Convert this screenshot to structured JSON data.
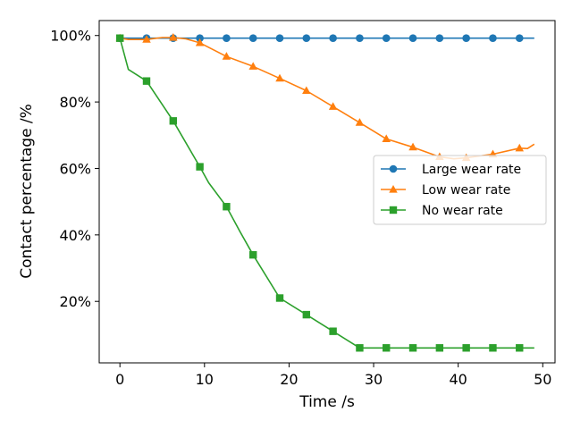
{
  "chart_data": {
    "type": "line",
    "title": "",
    "xlabel": "Time /s",
    "ylabel": "Contact percentage /%",
    "xlim": [
      -2.45,
      51.45
    ],
    "ylim": [
      1.5,
      104.5
    ],
    "x_ticks": [
      0,
      10,
      20,
      30,
      40,
      50
    ],
    "x_tick_labels": [
      "0",
      "10",
      "20",
      "30",
      "40",
      "50"
    ],
    "y_ticks": [
      20,
      40,
      60,
      80,
      100
    ],
    "y_tick_labels": [
      "20%",
      "40%",
      "60%",
      "80%",
      "100%"
    ],
    "grid": false,
    "legend_position": "center-right",
    "series": [
      {
        "name": "Large wear rate",
        "color": "#1f77b4",
        "marker": "circle",
        "x": [
          0,
          3.15,
          6.3,
          9.45,
          12.6,
          15.75,
          18.9,
          22.05,
          25.2,
          28.35,
          31.5,
          34.65,
          37.8,
          40.95,
          44.1,
          47.25,
          49
        ],
        "y": [
          99.2,
          99.2,
          99.2,
          99.2,
          99.2,
          99.2,
          99.2,
          99.2,
          99.2,
          99.2,
          99.2,
          99.2,
          99.2,
          99.2,
          99.2,
          99.2,
          99.2
        ],
        "marker_indices": [
          0,
          1,
          2,
          3,
          4,
          5,
          6,
          7,
          8,
          9,
          10,
          11,
          12,
          13,
          14,
          15
        ]
      },
      {
        "name": "Low wear rate",
        "color": "#ff7f0e",
        "marker": "triangle",
        "x": [
          0,
          1,
          3.15,
          5,
          6.3,
          7.8,
          9.45,
          12.6,
          15.75,
          18.9,
          22.05,
          25.2,
          28.35,
          31.5,
          34.65,
          37.8,
          39.5,
          40.95,
          44.1,
          47.25,
          48.2,
          49
        ],
        "y": [
          99.2,
          98.8,
          98.8,
          99.4,
          99.4,
          99.0,
          97.8,
          93.7,
          90.7,
          87.1,
          83.4,
          78.6,
          73.8,
          68.9,
          66.4,
          63.5,
          62.9,
          63.2,
          64.3,
          66.1,
          66.0,
          67.3
        ],
        "marker_indices": [
          0,
          2,
          4,
          6,
          7,
          8,
          9,
          10,
          11,
          12,
          13,
          14,
          15,
          17,
          18,
          19
        ]
      },
      {
        "name": "No wear rate",
        "color": "#2ca02c",
        "marker": "square",
        "x": [
          0,
          1,
          3.15,
          6.3,
          9.45,
          10.5,
          12.6,
          14.2,
          15.75,
          18.9,
          22.05,
          25.2,
          28.35,
          31.5,
          34.65,
          37.8,
          40.95,
          44.1,
          47.25,
          49
        ],
        "y": [
          99.2,
          89.8,
          86.3,
          74.3,
          60.5,
          55.7,
          48.5,
          41.0,
          34.0,
          21.0,
          16.0,
          11.0,
          6.0,
          6.0,
          6.0,
          6.0,
          6.0,
          6.0,
          6.0,
          6.0
        ],
        "marker_indices": [
          0,
          2,
          3,
          4,
          6,
          8,
          9,
          10,
          11,
          12,
          13,
          14,
          15,
          16,
          17,
          18
        ]
      }
    ]
  }
}
